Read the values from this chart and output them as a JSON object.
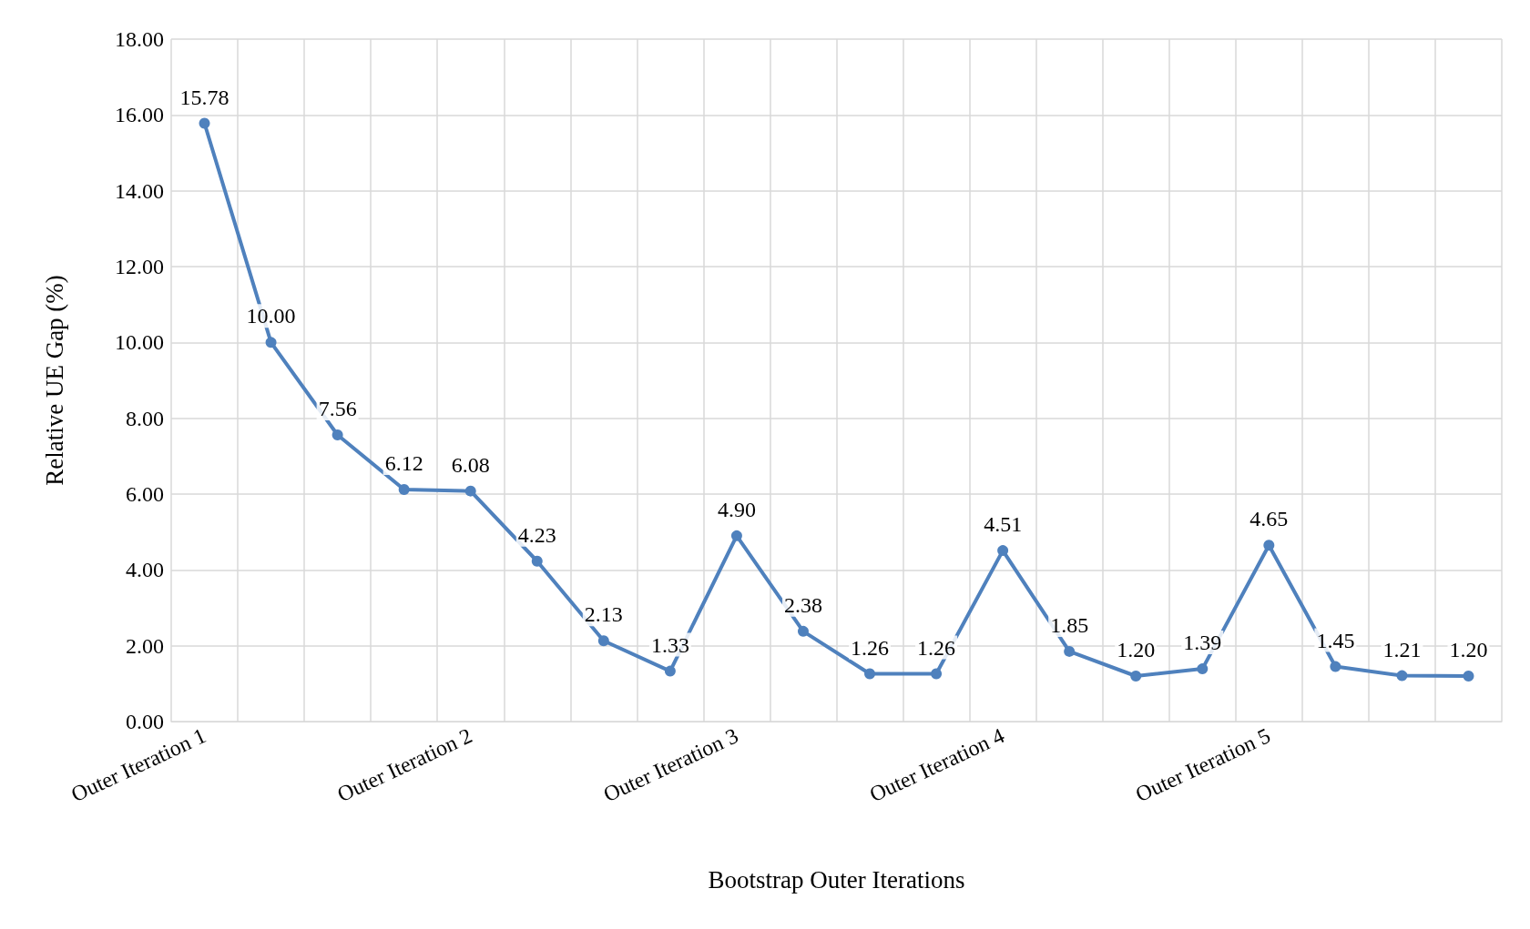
{
  "chart_data": {
    "type": "line",
    "xlabel": "Bootstrap Outer Iterations",
    "ylabel": "Relative UE Gap (%)",
    "categories": [
      "Outer Iteration 1",
      null,
      null,
      null,
      "Outer Iteration 2",
      null,
      null,
      null,
      "Outer Iteration 3",
      null,
      null,
      null,
      "Outer Iteration 4",
      null,
      null,
      null,
      "Outer Iteration 5",
      null,
      null,
      null
    ],
    "series": [
      {
        "color": "#4f81bd",
        "values": [
          15.78,
          10.0,
          7.56,
          6.12,
          6.08,
          4.23,
          2.13,
          1.33,
          4.9,
          2.38,
          1.26,
          1.26,
          4.51,
          1.85,
          1.2,
          1.39,
          4.65,
          1.45,
          1.21,
          1.2
        ],
        "value_labels": [
          "15.78",
          "10.00",
          "7.56",
          "6.12",
          "6.08",
          "4.23",
          "2.13",
          "1.33",
          "4.90",
          "2.38",
          "1.26",
          "1.26",
          "4.51",
          "1.85",
          "1.20",
          "1.39",
          "4.65",
          "1.45",
          "1.21",
          "1.20"
        ]
      }
    ],
    "ylim": [
      0,
      18
    ],
    "yticks": [
      {
        "value": 0,
        "label": "0.00"
      },
      {
        "value": 2,
        "label": "2.00"
      },
      {
        "value": 4,
        "label": "4.00"
      },
      {
        "value": 6,
        "label": "6.00"
      },
      {
        "value": 8,
        "label": "8.00"
      },
      {
        "value": 10,
        "label": "10.00"
      },
      {
        "value": 12,
        "label": "12.00"
      },
      {
        "value": 14,
        "label": "14.00"
      },
      {
        "value": 16,
        "label": "16.00"
      },
      {
        "value": 18,
        "label": "18.00"
      }
    ],
    "grid": true,
    "marker": "circle",
    "line_style": "solid"
  }
}
